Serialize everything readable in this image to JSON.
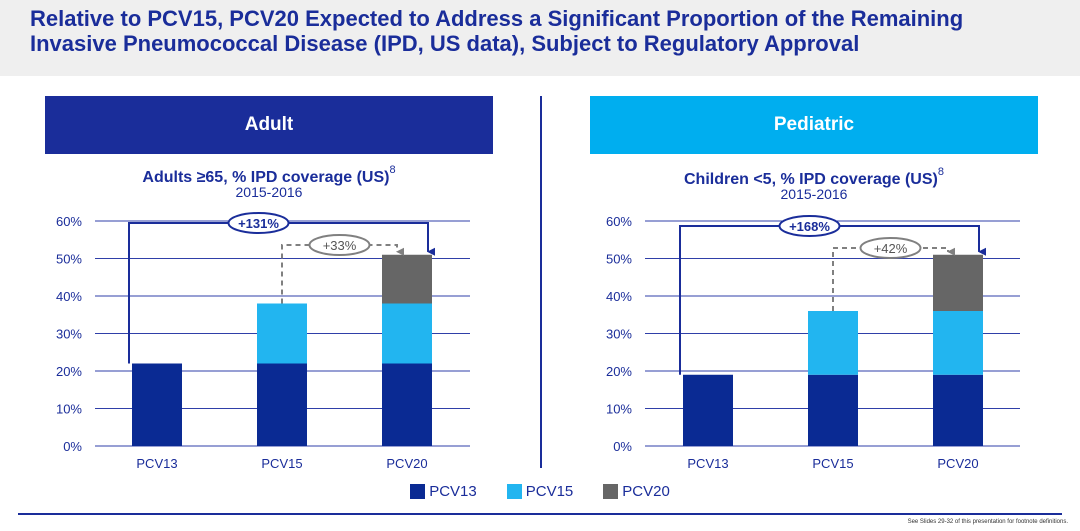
{
  "title": {
    "line1": "Relative to PCV15, PCV20 Expected to Address a Significant Proportion of the Remaining",
    "line2": "Invasive Pneumococcal Disease (IPD, US data), Subject to Regulatory Approval"
  },
  "colors": {
    "title": "#1a2d9a",
    "title_band": "#efefef",
    "adult_header": "#1a2d9a",
    "pediatric_header": "#00aeef",
    "grid": "#2f3fa8",
    "arrow": "#1a2d9a",
    "dashed_arrow": "#808080"
  },
  "panels": {
    "adult": {
      "header": "Adult",
      "subtitle": "Adults ≥65, % IPD coverage (US)",
      "footnote_ref": "8",
      "period": "2015-2016"
    },
    "pediatric": {
      "header": "Pediatric",
      "subtitle": "Children <5, % IPD coverage (US)",
      "footnote_ref": "8",
      "period": "2015-2016"
    }
  },
  "legend": [
    {
      "label": "PCV13",
      "color": "#0a2a93"
    },
    {
      "label": "PCV15",
      "color": "#22b5f0"
    },
    {
      "label": "PCV20",
      "color": "#666666"
    }
  ],
  "footnote": "See Slides 29-32 of this presentation for footnote definitions.",
  "chart_data": [
    {
      "type": "bar",
      "stacked": true,
      "categories": [
        "PCV13",
        "PCV15",
        "PCV20"
      ],
      "series": [
        {
          "name": "PCV13",
          "color": "#0a2a93",
          "values": [
            22,
            22,
            22
          ]
        },
        {
          "name": "PCV15",
          "color": "#22b5f0",
          "values": [
            0,
            16,
            16
          ]
        },
        {
          "name": "PCV20",
          "color": "#666666",
          "values": [
            0,
            0,
            13
          ]
        }
      ],
      "ylim": [
        0,
        60
      ],
      "yticks": [
        0,
        10,
        20,
        30,
        40,
        50,
        60
      ],
      "ytick_labels": [
        "0%",
        "10%",
        "20%",
        "30%",
        "40%",
        "50%",
        "60%"
      ],
      "grid": true,
      "annotations": [
        {
          "text": "+131%",
          "from": "PCV13",
          "to": "PCV20",
          "style": "solid"
        },
        {
          "text": "+33%",
          "from": "PCV15",
          "to": "PCV20",
          "style": "dashed"
        }
      ]
    },
    {
      "type": "bar",
      "stacked": true,
      "categories": [
        "PCV13",
        "PCV15",
        "PCV20"
      ],
      "series": [
        {
          "name": "PCV13",
          "color": "#0a2a93",
          "values": [
            19,
            19,
            19
          ]
        },
        {
          "name": "PCV15",
          "color": "#22b5f0",
          "values": [
            0,
            17,
            17
          ]
        },
        {
          "name": "PCV20",
          "color": "#666666",
          "values": [
            0,
            0,
            15
          ]
        }
      ],
      "ylim": [
        0,
        60
      ],
      "yticks": [
        0,
        10,
        20,
        30,
        40,
        50,
        60
      ],
      "ytick_labels": [
        "0%",
        "10%",
        "20%",
        "30%",
        "40%",
        "50%",
        "60%"
      ],
      "grid": true,
      "annotations": [
        {
          "text": "+168%",
          "from": "PCV13",
          "to": "PCV20",
          "style": "solid"
        },
        {
          "text": "+42%",
          "from": "PCV15",
          "to": "PCV20",
          "style": "dashed"
        }
      ]
    }
  ]
}
